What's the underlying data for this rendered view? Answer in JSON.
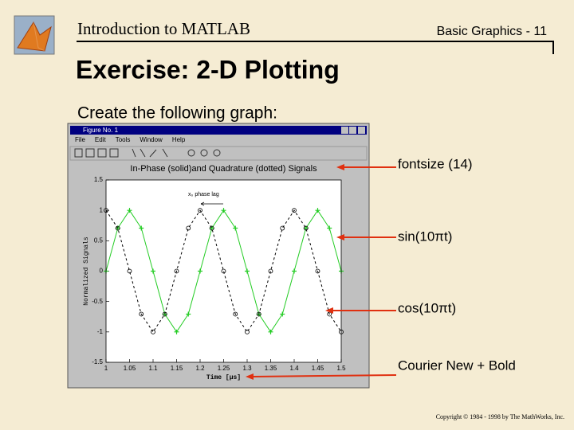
{
  "header": {
    "course": "Introduction to MATLAB",
    "slide": "Basic Graphics - 11"
  },
  "title": "Exercise: 2-D Plotting",
  "subtitle": "Create the following graph:",
  "figure": {
    "window_title": "Figure No. 1",
    "menus": [
      "File",
      "Edit",
      "Tools",
      "Window",
      "Help"
    ],
    "chart": {
      "type": "line",
      "title": "In-Phase (solid)and Quadrature (dotted) Signals",
      "xlabel": "Time [µs]",
      "ylabel": "Normalized Signals",
      "annotation": "x₀ phase lag",
      "x": [
        1,
        1.025,
        1.05,
        1.075,
        1.1,
        1.125,
        1.15,
        1.175,
        1.2,
        1.225,
        1.25,
        1.275,
        1.3,
        1.325,
        1.35,
        1.375,
        1.4,
        1.425,
        1.45,
        1.475,
        1.5
      ],
      "series": [
        {
          "name": "sin(10πt)",
          "color": "#22cc22",
          "marker": "+",
          "dash": false,
          "values": [
            0,
            0.707,
            1,
            0.707,
            0,
            -0.707,
            -1,
            -0.707,
            0,
            0.707,
            1,
            0.707,
            0,
            -0.707,
            -1,
            -0.707,
            0,
            0.707,
            1,
            0.707,
            0
          ]
        },
        {
          "name": "cos(10πt)",
          "color": "#000000",
          "marker": "o",
          "dash": true,
          "values": [
            1,
            0.707,
            0,
            -0.707,
            -1,
            -0.707,
            0,
            0.707,
            1,
            0.707,
            0,
            -0.707,
            -1,
            -0.707,
            0,
            0.707,
            1,
            0.707,
            0,
            -0.707,
            -1
          ]
        }
      ],
      "xlim": [
        1,
        1.5
      ],
      "xticks": [
        1,
        1.05,
        1.1,
        1.15,
        1.2,
        1.25,
        1.3,
        1.35,
        1.4,
        1.45,
        1.5
      ],
      "ylim": [
        -1.5,
        1.5
      ],
      "yticks": [
        1.5,
        1,
        0.5,
        0,
        -0.5,
        -1,
        -1.5
      ]
    }
  },
  "callouts": [
    {
      "text": "fontsize (14)"
    },
    {
      "text": "sin(10πt)"
    },
    {
      "text": "cos(10πt)"
    },
    {
      "text": "Courier New + Bold"
    }
  ],
  "copyright": "Copyright © 1984 - 1998 by The MathWorks, Inc."
}
